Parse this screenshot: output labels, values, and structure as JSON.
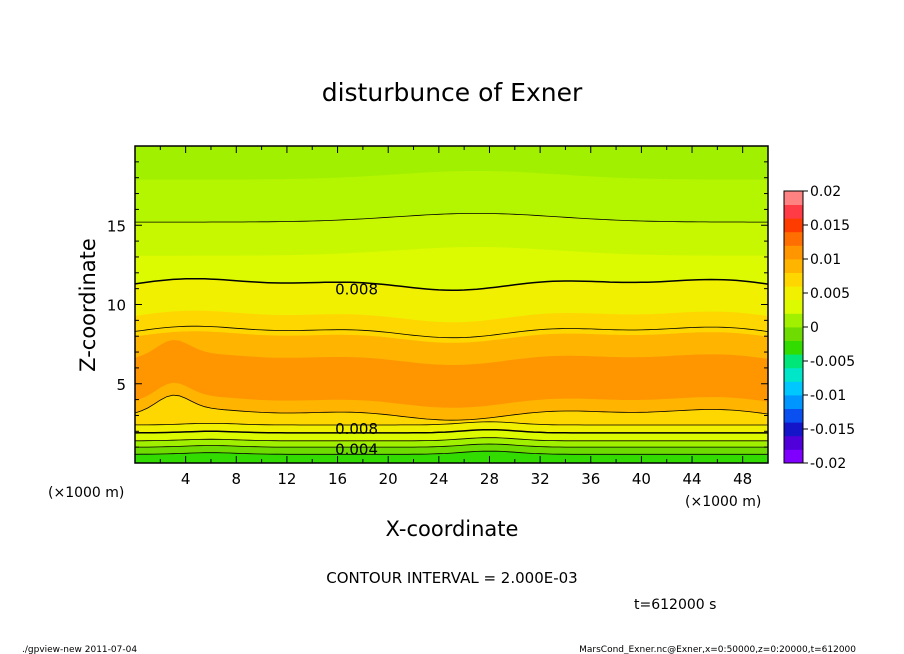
{
  "chart_data": {
    "type": "heatmap",
    "title": "disturbunce of Exner",
    "xlabel": "X-coordinate",
    "ylabel": "Z-coordinate",
    "x_unit": "(×1000 m)",
    "y_unit": "(×1000 m)",
    "xlim": [
      0,
      50
    ],
    "ylim": [
      0,
      20
    ],
    "x_ticks": [
      4,
      8,
      12,
      16,
      20,
      24,
      28,
      32,
      36,
      40,
      44,
      48
    ],
    "y_ticks": [
      5,
      10,
      15
    ],
    "colorbar": {
      "ticks": [
        "0.02",
        "0.015",
        "0.01",
        "0.005",
        "0",
        "-0.005",
        "-0.01",
        "-0.015",
        "-0.02"
      ],
      "tick_values": [
        0.02,
        0.015,
        0.01,
        0.005,
        0,
        -0.005,
        -0.01,
        -0.015,
        -0.02
      ],
      "range": [
        -0.02,
        0.02
      ],
      "colors": [
        "#7f00ff",
        "#5000d8",
        "#1414c8",
        "#0a50f0",
        "#0096ff",
        "#00c8ff",
        "#00e6c8",
        "#00e678",
        "#32dc00",
        "#6edc00",
        "#a0f000",
        "#dcfa00",
        "#f0f000",
        "#ffd700",
        "#ffb400",
        "#ff9600",
        "#ff6e00",
        "#ff3c00",
        "#ff3c46",
        "#ff8282"
      ]
    },
    "contour_labels": [
      {
        "text": "0.008",
        "x": 17.5,
        "z": 11.0
      },
      {
        "text": "0.008",
        "x": 17.5,
        "z": 2.2
      },
      {
        "text": "0.004",
        "x": 17.5,
        "z": 0.9
      }
    ],
    "contour_interval_text": "CONTOUR INTERVAL = 2.000E-03",
    "time_text": "t=612000 s",
    "footer_left": "./gpview-new  2011-07-04",
    "footer_right": "MarsCond_Exner.nc@Exner,x=0:50000,z=0:20000,t=612000"
  }
}
